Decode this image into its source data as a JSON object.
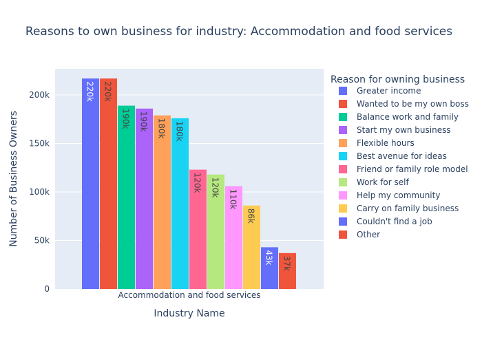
{
  "chart_data": {
    "type": "bar",
    "title": "Reasons to own business for industry: Accommodation and food services",
    "xlabel": "Industry Name",
    "ylabel": "Number of Business Owners",
    "categories": [
      "Accommodation and food services"
    ],
    "ylim": [
      0,
      227000
    ],
    "yticks": [
      0,
      50000,
      100000,
      150000,
      200000
    ],
    "ytick_labels": [
      "0",
      "50k",
      "100k",
      "150k",
      "200k"
    ],
    "legend_title": "Reason for owning business",
    "legend_position": "right",
    "grid": true,
    "series": [
      {
        "name": "Greater income",
        "values": [
          217000
        ],
        "label": "220k",
        "color": "#636efa",
        "label_color": "#ffffff"
      },
      {
        "name": "Wanted to be my own boss",
        "values": [
          217000
        ],
        "label": "220k",
        "color": "#EF553B",
        "label_color": "#444444"
      },
      {
        "name": "Balance work and family",
        "values": [
          189000
        ],
        "label": "190k",
        "color": "#00cc96",
        "label_color": "#444444"
      },
      {
        "name": "Start my own business",
        "values": [
          186000
        ],
        "label": "190k",
        "color": "#ab63fa",
        "label_color": "#444444"
      },
      {
        "name": "Flexible hours",
        "values": [
          179000
        ],
        "label": "180k",
        "color": "#FFA15A",
        "label_color": "#444444"
      },
      {
        "name": "Best avenue for ideas",
        "values": [
          176000
        ],
        "label": "180k",
        "color": "#19d3f3",
        "label_color": "#444444"
      },
      {
        "name": "Friend or family role model",
        "values": [
          123000
        ],
        "label": "120k",
        "color": "#FF6692",
        "label_color": "#444444"
      },
      {
        "name": "Work for self",
        "values": [
          118000
        ],
        "label": "120k",
        "color": "#B6E880",
        "label_color": "#444444"
      },
      {
        "name": "Help my community",
        "values": [
          106000
        ],
        "label": "110k",
        "color": "#FF97FF",
        "label_color": "#444444"
      },
      {
        "name": "Carry on family business",
        "values": [
          86000
        ],
        "label": "86k",
        "color": "#FECB52",
        "label_color": "#444444"
      },
      {
        "name": "Couldn't find a job",
        "values": [
          43000
        ],
        "label": "43k",
        "color": "#636efa",
        "label_color": "#ffffff"
      },
      {
        "name": "Other",
        "values": [
          37000
        ],
        "label": "37k",
        "color": "#EF553B",
        "label_color": "#444444"
      }
    ]
  }
}
